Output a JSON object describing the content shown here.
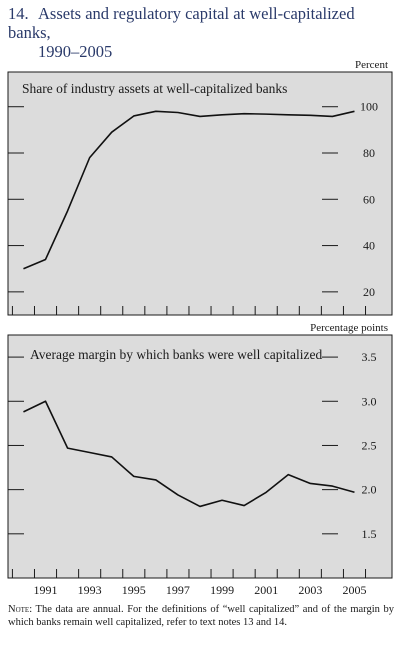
{
  "figure": {
    "number": "14.",
    "title_line1": "Assets and regulatory capital at well-capitalized banks,",
    "title_line2": "1990–2005"
  },
  "note": {
    "label": "Note:",
    "text": "The data are annual. For the definitions of “well capitalized” and of the margin by which banks remain well capitalized, refer to text notes 13 and 14."
  },
  "chart_data": [
    {
      "type": "line",
      "title": "Share of industry assets at well-capitalized banks",
      "unit": "Percent",
      "x": [
        1990,
        1991,
        1992,
        1993,
        1994,
        1995,
        1996,
        1997,
        1998,
        1999,
        2000,
        2001,
        2002,
        2003,
        2004,
        2005
      ],
      "series": [
        {
          "values": [
            30,
            34,
            55,
            78,
            89,
            96,
            98,
            97.5,
            95.8,
            96.5,
            97,
            96.8,
            96.5,
            96.3,
            95.8,
            98
          ]
        }
      ],
      "ylim": [
        10,
        115
      ],
      "yticks": [
        20,
        40,
        60,
        80,
        100
      ],
      "ytick_labels": [
        "20",
        "40",
        "60",
        "80",
        "100"
      ],
      "xlim": [
        1989.3,
        2006.7
      ],
      "xtick_labels": [],
      "grid": false,
      "fill": "#dcdcdc"
    },
    {
      "type": "line",
      "title": "Average margin by which banks were well capitalized",
      "unit": "Percentage points",
      "x": [
        1990,
        1991,
        1992,
        1993,
        1994,
        1995,
        1996,
        1997,
        1998,
        1999,
        2000,
        2001,
        2002,
        2003,
        2004,
        2005
      ],
      "series": [
        {
          "values": [
            2.88,
            3.0,
            2.47,
            2.42,
            2.37,
            2.15,
            2.11,
            1.94,
            1.81,
            1.88,
            1.82,
            1.97,
            2.17,
            2.07,
            2.04,
            1.97
          ]
        }
      ],
      "ylim": [
        1.0,
        3.75
      ],
      "yticks": [
        1.5,
        2.0,
        2.5,
        3.0,
        3.5
      ],
      "ytick_labels": [
        "1.5",
        "2.0",
        "2.5",
        "3.0",
        "3.5"
      ],
      "xlim": [
        1989.3,
        2006.7
      ],
      "xtick_labels": [
        "1991",
        "1993",
        "1995",
        "1997",
        "1999",
        "2001",
        "2003",
        "2005"
      ],
      "grid": false,
      "fill": "#dcdcdc"
    }
  ]
}
